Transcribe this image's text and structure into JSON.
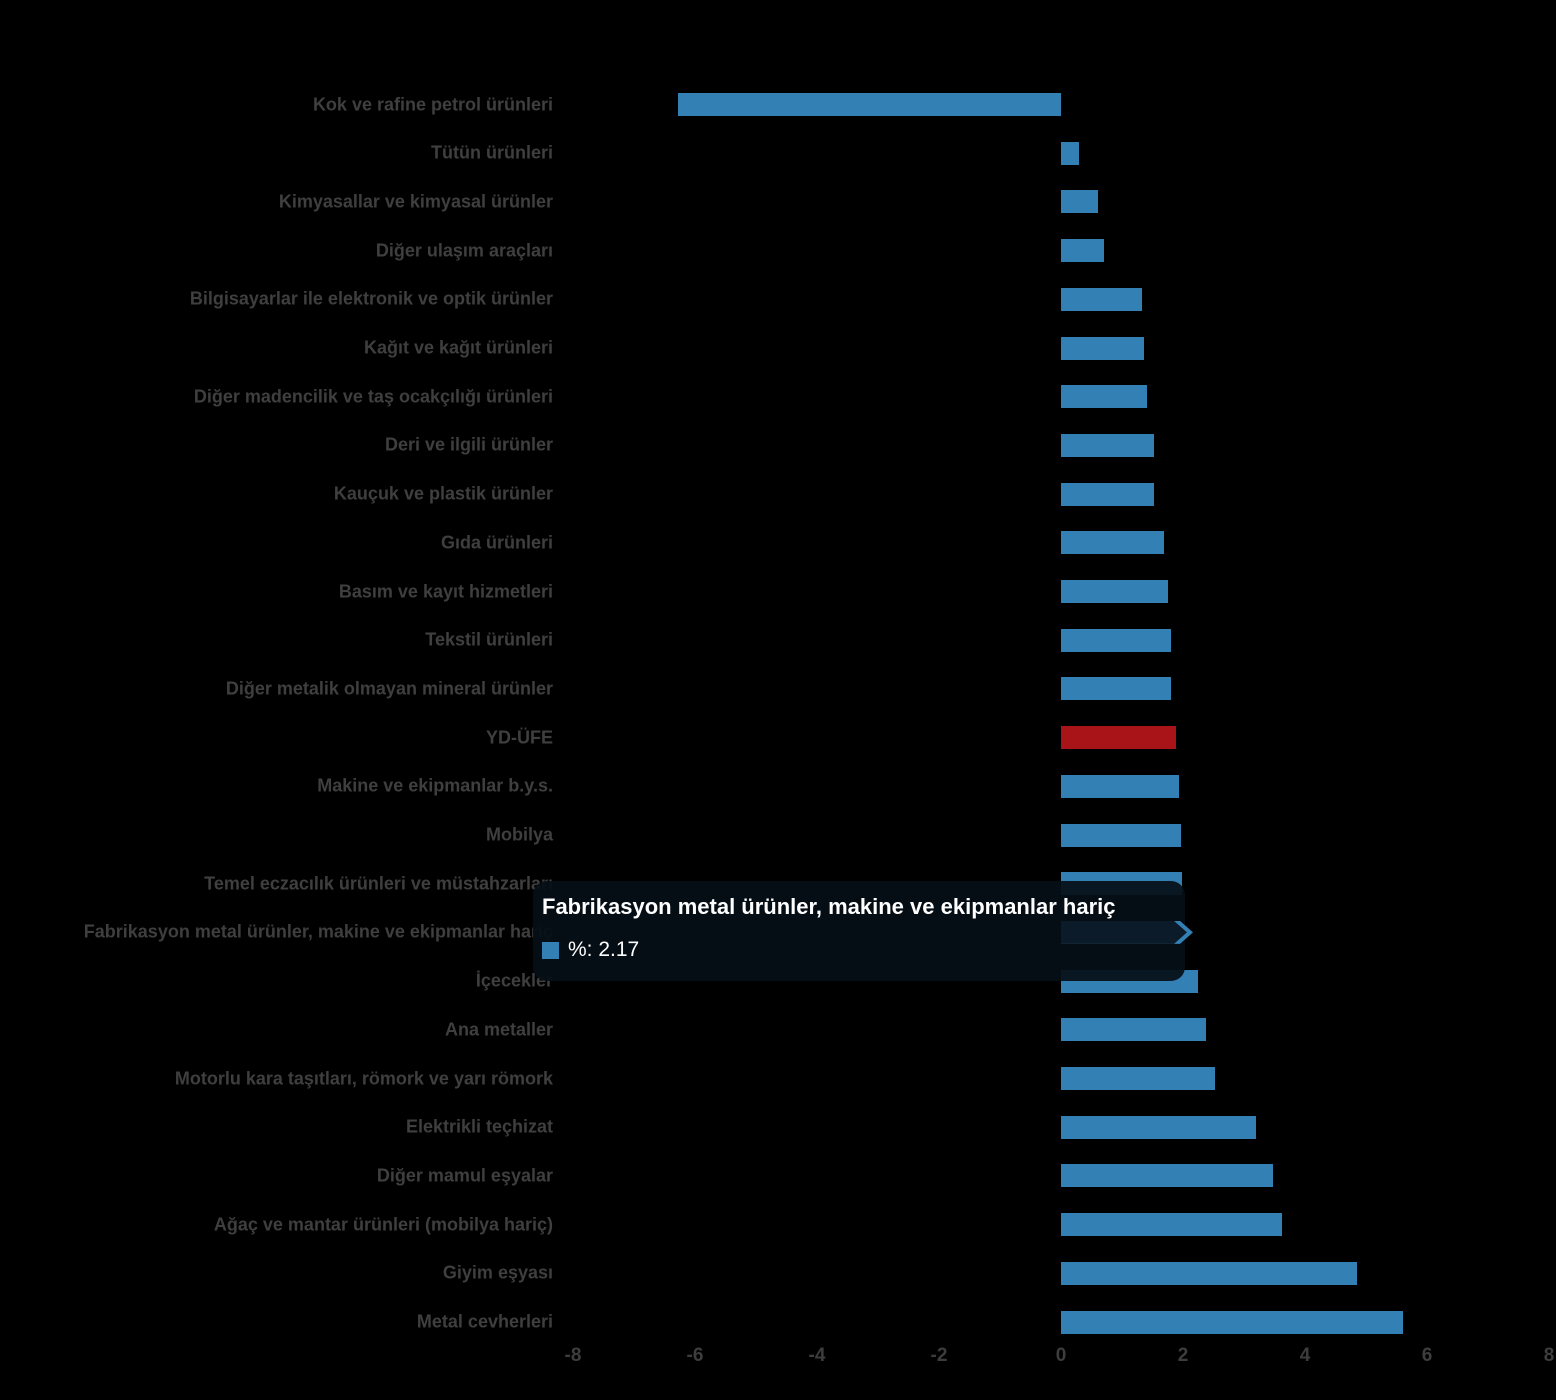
{
  "chart_data": {
    "type": "bar",
    "orientation": "horizontal",
    "title": "",
    "xlabel": "",
    "ylabel": "",
    "xlim": [
      -8,
      8
    ],
    "grid": false,
    "legend": false,
    "x_ticks": [
      -8,
      -6,
      -4,
      -2,
      0,
      2,
      4,
      6,
      8
    ],
    "x_tick_labels": [
      "-8",
      "-6",
      "-4",
      "-2",
      "0",
      "2",
      "4",
      "6",
      "8"
    ],
    "categories": [
      "Kok ve rafine petrol ürünleri",
      "Tütün ürünleri",
      "Kimyasallar ve kimyasal ürünler",
      "Diğer ulaşım araçları",
      "Bilgisayarlar ile elektronik ve optik ürünler",
      "Kağıt ve kağıt ürünleri",
      "Diğer madencilik ve taş ocakçılığı ürünleri",
      "Deri ve ilgili ürünler",
      "Kauçuk ve plastik ürünler",
      "Gıda ürünleri",
      "Basım ve kayıt hizmetleri",
      "Tekstil ürünleri",
      "Diğer metalik olmayan mineral ürünler",
      "YD-ÜFE",
      "Makine ve ekipmanlar b.y.s.",
      "Mobilya",
      "Temel eczacılık ürünleri ve müstahzarları",
      "Fabrikasyon metal ürünler, makine ve ekipmanlar hariç",
      "İçecekler",
      "Ana metaller",
      "Motorlu kara taşıtları, römork ve yarı römork",
      "Elektrikli teçhizat",
      "Diğer mamul eşyalar",
      "Ağaç ve mantar ürünleri (mobilya hariç)",
      "Giyim eşyası",
      "Metal cevherleri"
    ],
    "values": [
      -6.28,
      0.29,
      0.61,
      0.7,
      1.33,
      1.36,
      1.41,
      1.52,
      1.53,
      1.69,
      1.76,
      1.8,
      1.81,
      1.89,
      1.93,
      1.96,
      1.99,
      2.17,
      2.24,
      2.37,
      2.52,
      3.2,
      3.48,
      3.63,
      4.86,
      5.61
    ],
    "series_unit": "%",
    "yd_ufe_index": 13,
    "highlight_index": 17
  },
  "tooltip": {
    "title": "Fabrikasyon metal ürünler, makine ve ekipmanlar hariç",
    "value_label": "%: 2.17"
  },
  "colors": {
    "background": "#000000",
    "bar_blue": "#3380b5",
    "bar_red": "#a91418",
    "highlight_dark": "#0c1b29",
    "label_gray": "#3f3f3f",
    "axis_gray": "#3d3d3d",
    "tooltip_text": "#ffffff"
  }
}
